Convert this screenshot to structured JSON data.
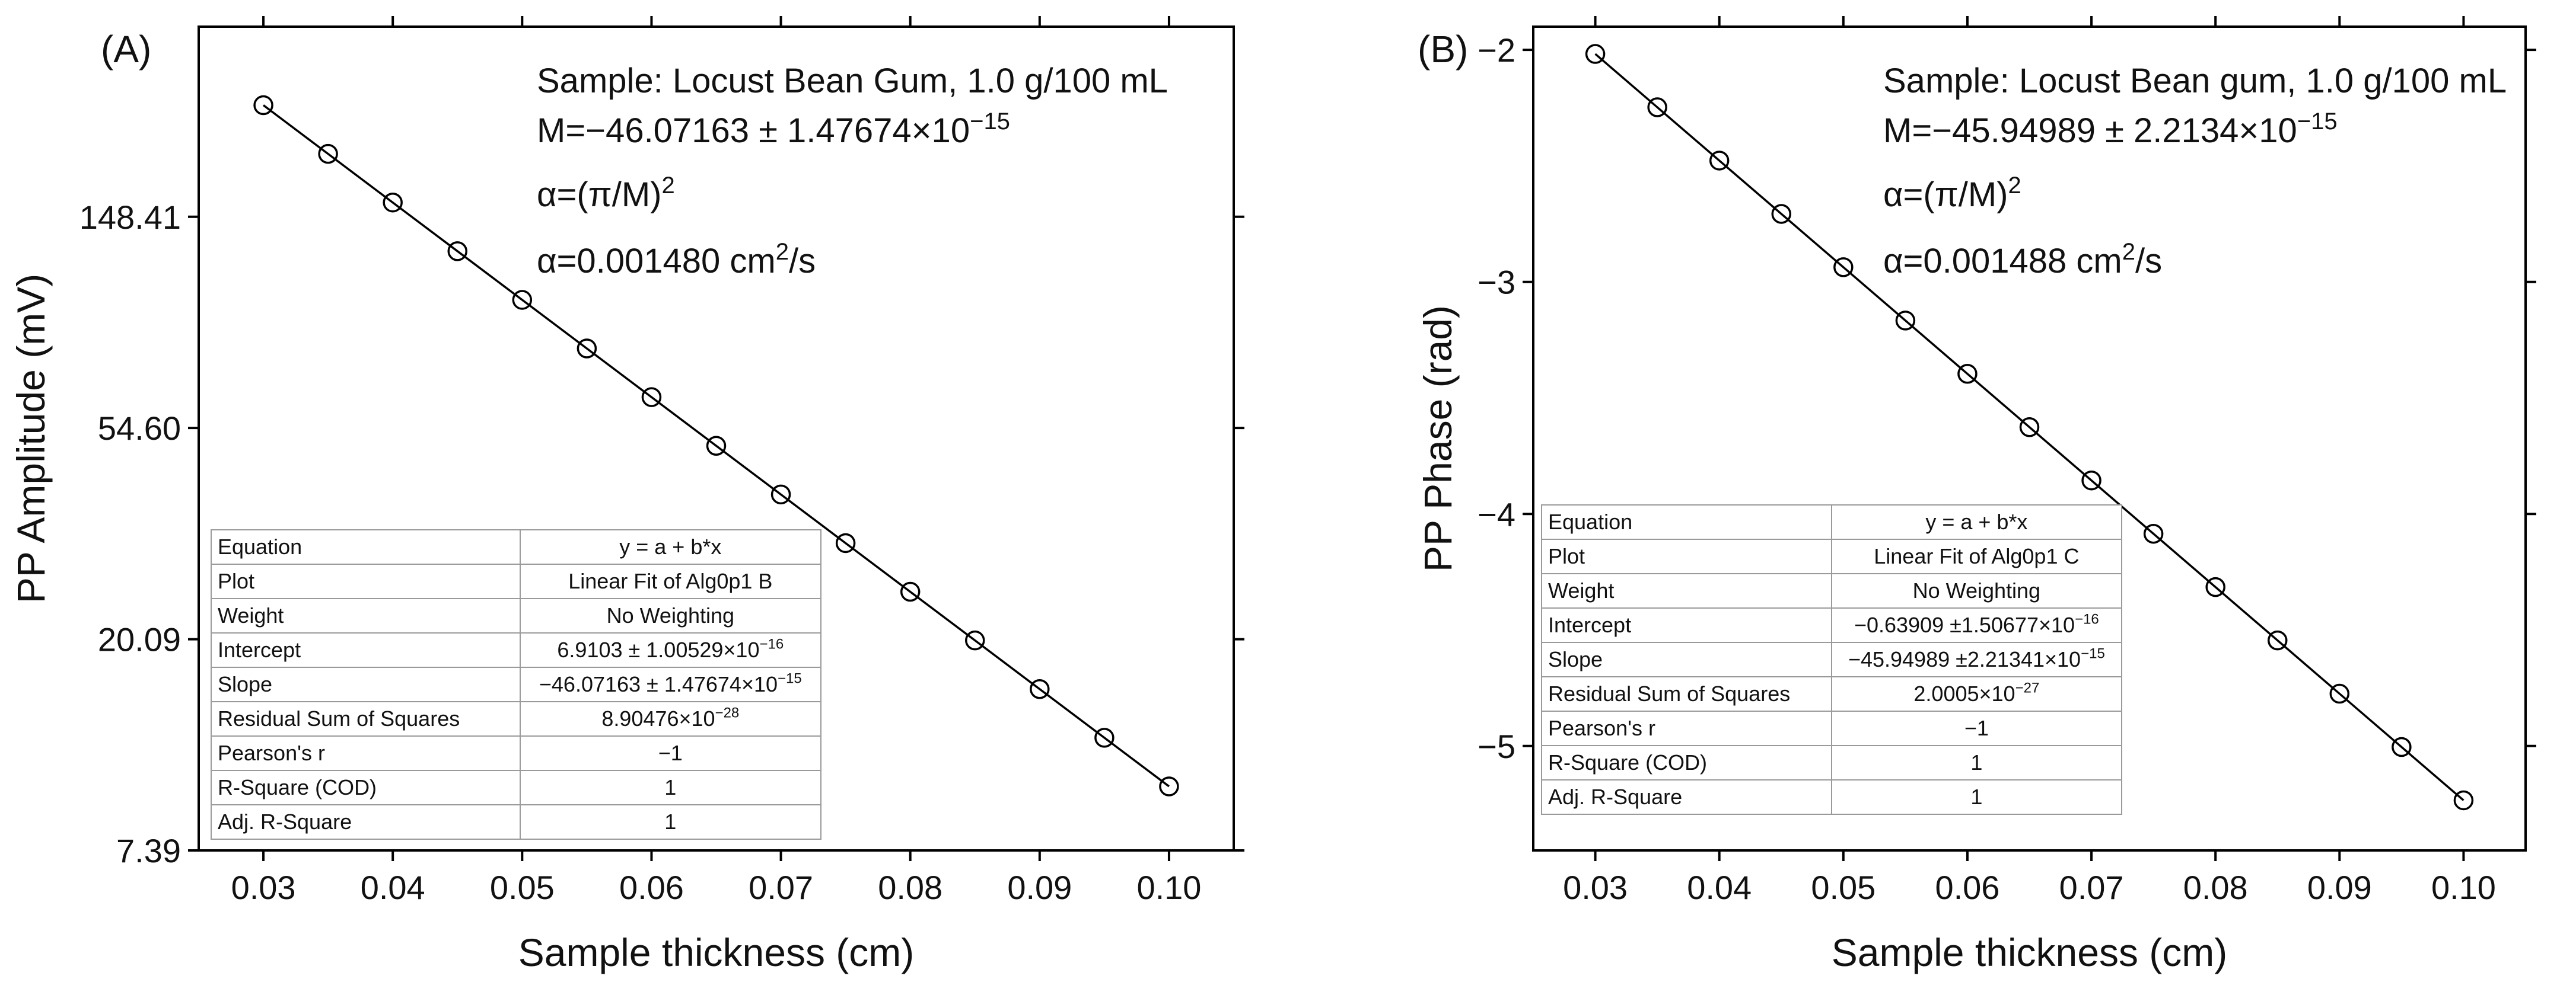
{
  "chart_data": [
    {
      "type": "scatter",
      "panel_label": "(A)",
      "xlabel": "Sample thickness (cm)",
      "ylabel": "PP Amplitude (mV)",
      "y_scale": "ln",
      "x_ticks": [
        "0.03",
        "0.04",
        "0.05",
        "0.06",
        "0.07",
        "0.08",
        "0.09",
        "0.10"
      ],
      "x_tick_values": [
        0.03,
        0.04,
        0.05,
        0.06,
        0.07,
        0.08,
        0.09,
        0.1
      ],
      "y_ticks": [
        "7.39",
        "20.09",
        "54.60",
        "148.41"
      ],
      "y_tick_values": [
        2,
        3,
        4,
        5
      ],
      "xlim": [
        0.025,
        0.105
      ],
      "ylim": [
        2,
        5.9
      ],
      "x": [
        0.03,
        0.035,
        0.04,
        0.045,
        0.05,
        0.055,
        0.06,
        0.065,
        0.07,
        0.075,
        0.08,
        0.085,
        0.09,
        0.095,
        0.1
      ],
      "y": [
        5.5282,
        5.2978,
        5.0675,
        4.8371,
        4.6067,
        4.3764,
        4.146,
        3.9157,
        3.6853,
        3.4549,
        3.2246,
        2.9942,
        2.7639,
        2.5335,
        2.3031
      ],
      "fit": {
        "intercept": 6.9103,
        "slope": -46.07163
      },
      "annotations": {
        "sample": "Sample: Locust Bean Gum, 1.0 g/100 mL",
        "m_main": "M=−46.07163 ± 1.47674×10",
        "m_exp": "−15",
        "alpha_formula": "α=(π/M)",
        "alpha_formula_exp": "2",
        "alpha_value": "α=0.001480 cm",
        "alpha_value_exp": "2",
        "alpha_value_tail": "/s"
      },
      "stats_table": [
        {
          "label": "Equation",
          "value": "y = a + b*x",
          "exp": ""
        },
        {
          "label": "Plot",
          "value": "Linear Fit of Alg0p1 B",
          "exp": ""
        },
        {
          "label": "Weight",
          "value": "No Weighting",
          "exp": ""
        },
        {
          "label": "Intercept",
          "value": "6.9103 ±  1.00529×10",
          "exp": "−16"
        },
        {
          "label": "Slope",
          "value": "−46.07163 ± 1.47674×10",
          "exp": "−15"
        },
        {
          "label": "Residual Sum of Squares",
          "value": "8.90476×10",
          "exp": "−28"
        },
        {
          "label": "Pearson's r",
          "value": "−1",
          "exp": ""
        },
        {
          "label": "R-Square (COD)",
          "value": "1",
          "exp": ""
        },
        {
          "label": "Adj. R-Square",
          "value": "1",
          "exp": ""
        }
      ]
    },
    {
      "type": "scatter",
      "panel_label": "(B)",
      "xlabel": "Sample thickness (cm)",
      "ylabel": "PP Phase (rad)",
      "y_scale": "linear",
      "x_ticks": [
        "0.03",
        "0.04",
        "0.05",
        "0.06",
        "0.07",
        "0.08",
        "0.09",
        "0.10"
      ],
      "x_tick_values": [
        0.03,
        0.04,
        0.05,
        0.06,
        0.07,
        0.08,
        0.09,
        0.1
      ],
      "y_ticks": [
        "−2",
        "−3",
        "−4",
        "−5"
      ],
      "y_tick_values": [
        -2,
        -3,
        -4,
        -5
      ],
      "xlim": [
        0.025,
        0.105
      ],
      "ylim": [
        -5.45,
        -1.9
      ],
      "x": [
        0.03,
        0.035,
        0.04,
        0.045,
        0.05,
        0.055,
        0.06,
        0.065,
        0.07,
        0.075,
        0.08,
        0.085,
        0.09,
        0.095,
        0.1
      ],
      "y": [
        -2.0176,
        -2.2474,
        -2.4771,
        -2.7069,
        -2.9366,
        -3.1664,
        -3.3961,
        -3.6259,
        -3.8556,
        -4.0854,
        -4.3151,
        -4.5449,
        -4.7746,
        -5.0044,
        -5.2341
      ],
      "fit": {
        "intercept": -0.63909,
        "slope": -45.94989
      },
      "annotations": {
        "sample": "Sample: Locust Bean gum, 1.0 g/100 mL",
        "m_main": "M=−45.94989 ± 2.2134×10",
        "m_exp": "−15",
        "alpha_formula": "α=(π/M)",
        "alpha_formula_exp": "2",
        "alpha_value": "α=0.001488 cm",
        "alpha_value_exp": "2",
        "alpha_value_tail": "/s"
      },
      "stats_table": [
        {
          "label": "Equation",
          "value": "y = a + b*x",
          "exp": ""
        },
        {
          "label": "Plot",
          "value": "Linear Fit of Alg0p1 C",
          "exp": ""
        },
        {
          "label": "Weight",
          "value": "No Weighting",
          "exp": ""
        },
        {
          "label": "Intercept",
          "value": "−0.63909 ±1.50677×10",
          "exp": "−16"
        },
        {
          "label": "Slope",
          "value": "−45.94989 ±2.21341×10",
          "exp": "−15"
        },
        {
          "label": "Residual Sum of Squares",
          "value": "2.0005×10",
          "exp": "−27"
        },
        {
          "label": "Pearson's r",
          "value": "−1",
          "exp": ""
        },
        {
          "label": "R-Square (COD)",
          "value": "1",
          "exp": ""
        },
        {
          "label": "Adj. R-Square",
          "value": "1",
          "exp": ""
        }
      ]
    }
  ]
}
